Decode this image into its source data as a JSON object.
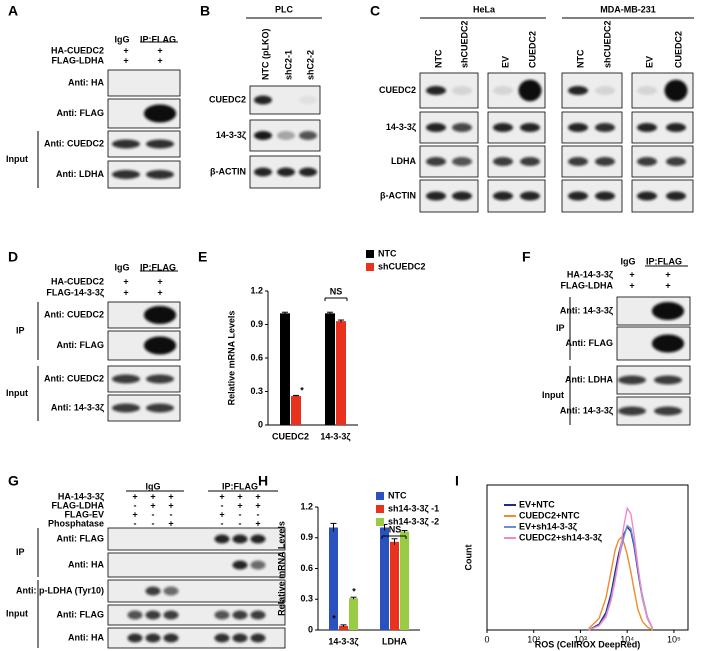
{
  "blots": {
    "A": {
      "letter": "A",
      "header": [
        "IgG",
        "IP:FLAG"
      ],
      "conditions": [
        {
          "label": "HA-CUEDC2",
          "signs": [
            "+",
            "+"
          ]
        },
        {
          "label": "FLAG-LDHA",
          "signs": [
            "+",
            "+"
          ]
        }
      ],
      "blots": [
        "Anti: HA",
        "Anti: FLAG",
        "Anti: CUEDC2",
        "Anti: LDHA"
      ],
      "groups": [
        "Input"
      ]
    },
    "B": {
      "letter": "B",
      "cell_line": "PLC",
      "lanes": [
        "NTC (pLKO)",
        "shC2-1",
        "shC2-2"
      ],
      "blots": [
        "CUEDC2",
        "14-3-3ζ",
        "β-ACTIN"
      ]
    },
    "C": {
      "letter": "C",
      "cell_lines": [
        "HeLa",
        "MDA-MB-231"
      ],
      "lanes": [
        "NTC",
        "shCUEDC2",
        "EV",
        "CUEDC2"
      ],
      "blots": [
        "CUEDC2",
        "14-3-3ζ",
        "LDHA",
        "β-ACTIN"
      ]
    },
    "D": {
      "letter": "D",
      "header": [
        "IgG",
        "IP:FLAG"
      ],
      "conditions": [
        {
          "label": "HA-CUEDC2",
          "signs": [
            "+",
            "+"
          ]
        },
        {
          "label": "FLAG-14-3-3ζ",
          "signs": [
            "+",
            "+"
          ]
        }
      ],
      "blots": [
        "Anti: CUEDC2",
        "Anti: FLAG",
        "Anti: CUEDC2",
        "Anti: 14-3-3ζ"
      ],
      "groups": [
        "IP",
        "Input"
      ]
    },
    "F": {
      "letter": "F",
      "header": [
        "IgG",
        "IP:FLAG"
      ],
      "conditions": [
        {
          "label": "HA-14-3-3ζ",
          "signs": [
            "+",
            "+"
          ]
        },
        {
          "label": "FLAG-LDHA",
          "signs": [
            "+",
            "+"
          ]
        }
      ],
      "blots": [
        "Anti: 14-3-3ζ",
        "Anti: FLAG",
        "Anti: LDHA",
        "Anti: 14-3-3ζ"
      ],
      "groups": [
        "IP",
        "Input"
      ]
    },
    "G": {
      "letter": "G",
      "header": [
        "IgG",
        "IP:FLAG"
      ],
      "conditions": [
        {
          "label": "HA-14-3-3ζ",
          "signs": [
            "+",
            "+",
            "+",
            "+",
            "+",
            "+"
          ]
        },
        {
          "label": "FLAG-LDHA",
          "signs": [
            "-",
            "+",
            "+",
            "-",
            "+",
            "+"
          ]
        },
        {
          "label": "FLAG-EV",
          "signs": [
            "+",
            "-",
            "-",
            "+",
            "-",
            "-"
          ]
        },
        {
          "label": "Phosphatase",
          "signs": [
            "-",
            "-",
            "+",
            "-",
            "-",
            "+"
          ]
        }
      ],
      "blots": [
        "Anti: FLAG",
        "Anti: HA",
        "Anti: p-LDHA (Tyr10)",
        "Anti: FLAG",
        "Anti: HA"
      ],
      "groups": [
        "IP",
        "Input"
      ]
    }
  },
  "chart_data": [
    {
      "panel": "E",
      "type": "bar",
      "ylabel": "Relative mRNA Levels",
      "categories": [
        "CUEDC2",
        "14-3-3ζ"
      ],
      "series": [
        {
          "name": "NTC",
          "color": "#000000",
          "values": [
            1.0,
            1.0
          ],
          "errors": [
            0.01,
            0.01
          ]
        },
        {
          "name": "shCUEDC2",
          "color": "#e8321e",
          "values": [
            0.26,
            0.93
          ],
          "errors": [
            0.005,
            0.01
          ]
        }
      ],
      "ylim": [
        0,
        1.2
      ],
      "yticks": [
        0,
        0.3,
        0.6,
        0.9,
        1.2
      ],
      "annotations": [
        "*",
        "NS"
      ]
    },
    {
      "panel": "H",
      "type": "bar",
      "ylabel": "Relative mRNA Levels",
      "categories": [
        "14-3-3ζ",
        "LDHA"
      ],
      "series": [
        {
          "name": "NTC",
          "color": "#2a52be",
          "values": [
            1.0,
            1.0
          ],
          "errors": [
            0.04,
            0.03
          ]
        },
        {
          "name": "sh14-3-3ζ -1",
          "color": "#e8321e",
          "values": [
            0.04,
            0.86
          ],
          "errors": [
            0.01,
            0.03
          ]
        },
        {
          "name": "sh14-3-3ζ -2",
          "color": "#99cc44",
          "values": [
            0.31,
            0.96
          ],
          "errors": [
            0.01,
            0.01
          ]
        }
      ],
      "ylim": [
        0,
        1.2
      ],
      "yticks": [
        0,
        0.3,
        0.6,
        0.9,
        1.2
      ],
      "annotations": [
        "*",
        "*",
        "NS"
      ]
    },
    {
      "panel": "I",
      "type": "line",
      "ylabel": "Count",
      "xlabel": "ROS (CellROX DeepRed)",
      "xscale": "log",
      "x": [
        1500,
        2500,
        3500,
        4500,
        5500,
        6500,
        7500,
        8500,
        10000,
        12000,
        14000,
        17000,
        21000,
        27000,
        35000
      ],
      "series": [
        {
          "name": "EV+NTC",
          "color": "#1f2a8a",
          "values": [
            0,
            4,
            12,
            25,
            40,
            52,
            60,
            66,
            71,
            68,
            58,
            40,
            22,
            8,
            1
          ]
        },
        {
          "name": "CUEDC2+NTC",
          "color": "#f08a2c",
          "values": [
            1,
            8,
            22,
            40,
            55,
            62,
            64,
            60,
            52,
            40,
            28,
            14,
            6,
            2,
            0
          ]
        },
        {
          "name": "EV+sh14-3-3ζ",
          "color": "#6a8fd8",
          "values": [
            0,
            3,
            10,
            22,
            36,
            48,
            57,
            64,
            72,
            70,
            60,
            42,
            24,
            9,
            1
          ]
        },
        {
          "name": "CUEDC2+sh14-3-3ζ",
          "color": "#f08ac8",
          "values": [
            0,
            3,
            9,
            20,
            34,
            48,
            60,
            72,
            84,
            80,
            66,
            44,
            22,
            8,
            1
          ]
        }
      ],
      "xlim": [
        0,
        200000
      ],
      "ylim": [
        0,
        100
      ],
      "xticks": [
        {
          "value": 0,
          "label": "0"
        },
        {
          "value": 100,
          "label": "10²"
        },
        {
          "value": 1000,
          "label": "10³"
        },
        {
          "value": 10000,
          "label": "10⁴"
        },
        {
          "value": 100000,
          "label": "10⁵"
        }
      ]
    }
  ]
}
